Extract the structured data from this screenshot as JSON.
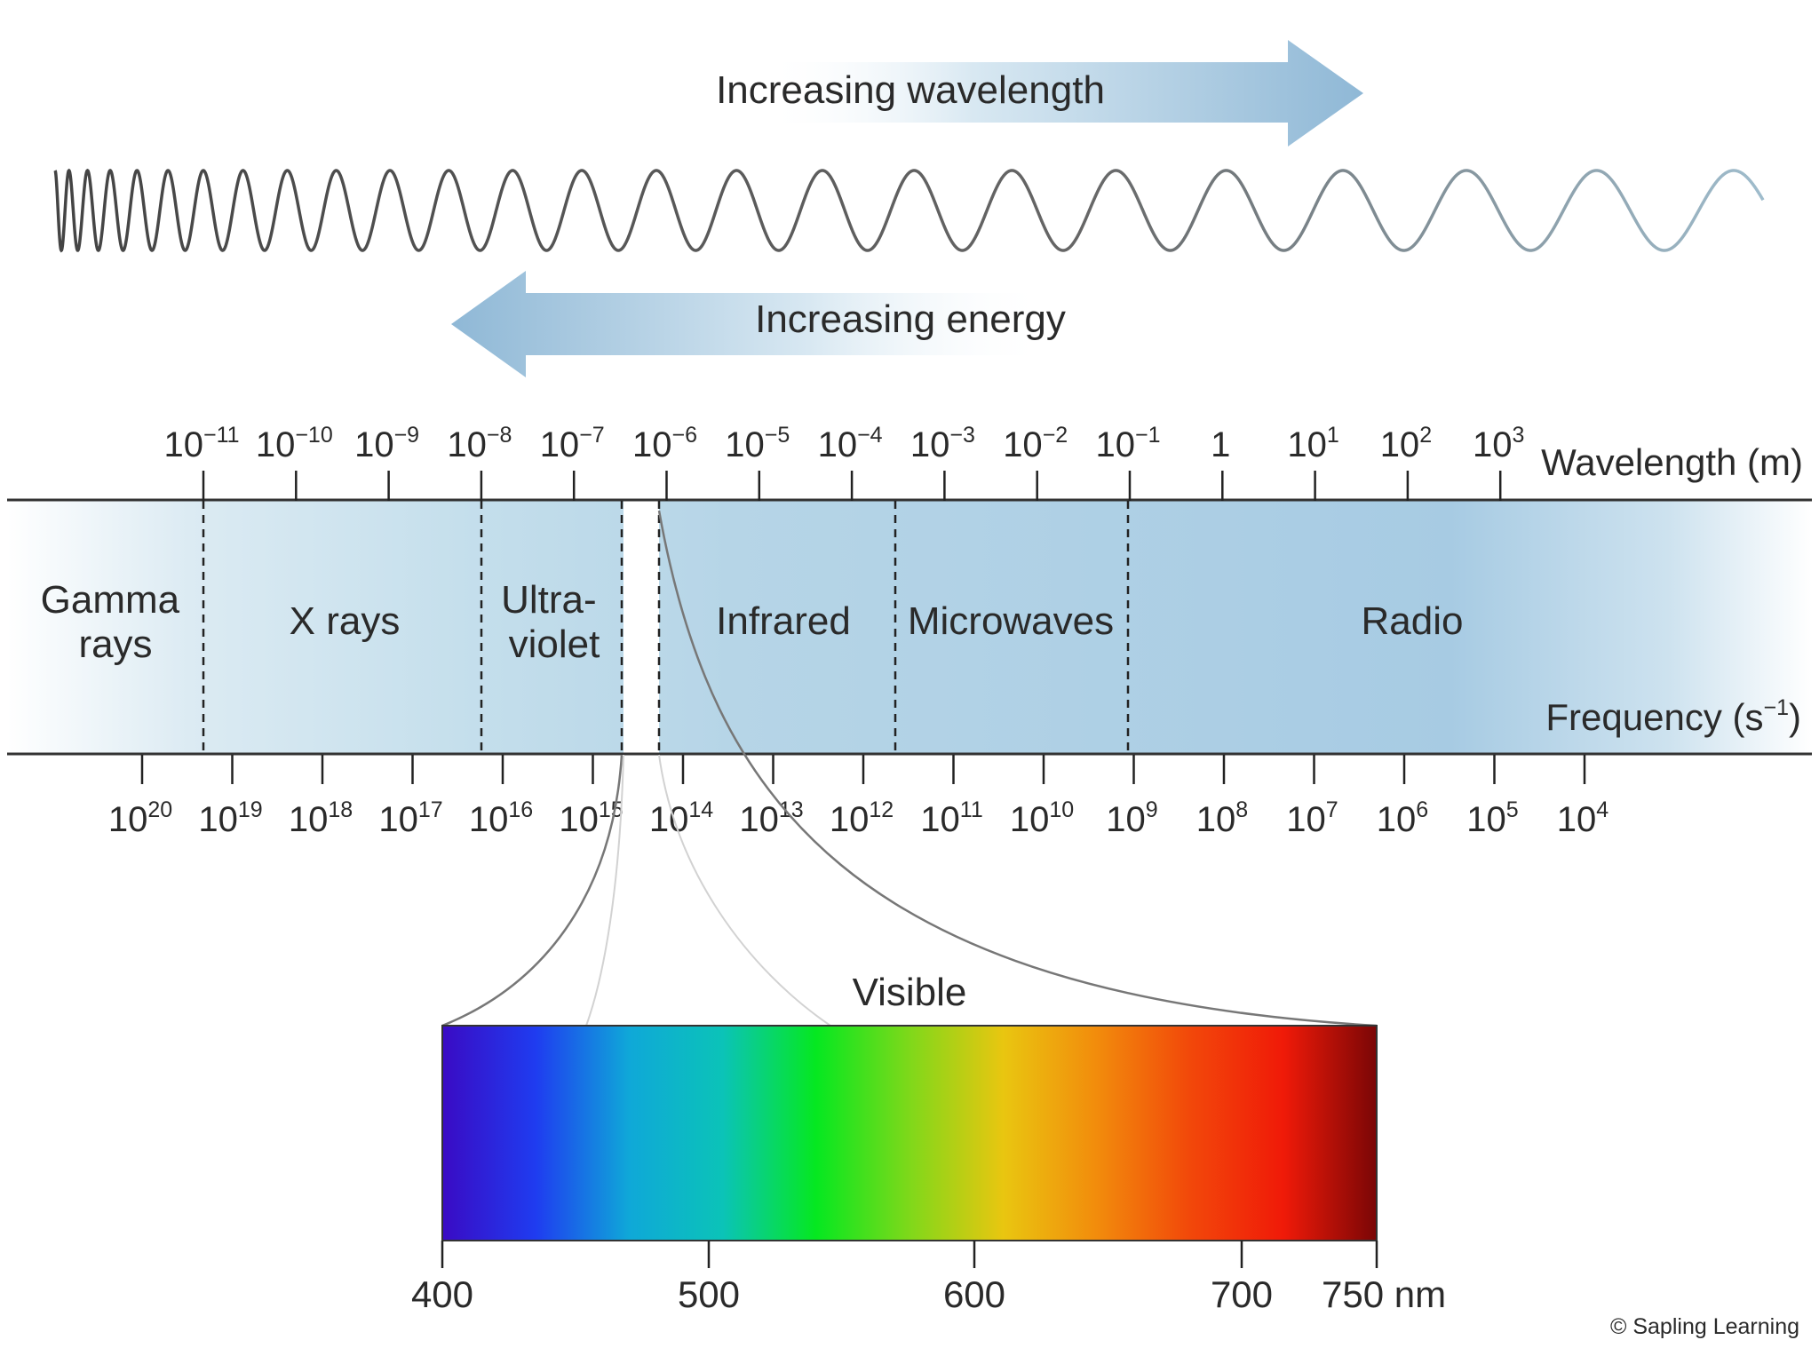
{
  "arrows": {
    "wavelength_label": "Increasing wavelength",
    "energy_label": "Increasing energy"
  },
  "wavelength_axis": {
    "title": "Wavelength (m)",
    "ticks": [
      {
        "base": "10",
        "exp": "−11"
      },
      {
        "base": "10",
        "exp": "−10"
      },
      {
        "base": "10",
        "exp": "−9"
      },
      {
        "base": "10",
        "exp": "−8"
      },
      {
        "base": "10",
        "exp": "−7"
      },
      {
        "base": "10",
        "exp": "−6"
      },
      {
        "base": "10",
        "exp": "−5"
      },
      {
        "base": "10",
        "exp": "−4"
      },
      {
        "base": "10",
        "exp": "−3"
      },
      {
        "base": "10",
        "exp": "−2"
      },
      {
        "base": "10",
        "exp": "−1"
      },
      {
        "base": "1",
        "exp": ""
      },
      {
        "base": "10",
        "exp": "1"
      },
      {
        "base": "10",
        "exp": "2"
      },
      {
        "base": "10",
        "exp": "3"
      }
    ]
  },
  "frequency_axis": {
    "title_base": "Frequency (s",
    "title_exp": "−1",
    "title_end": ")",
    "ticks": [
      {
        "base": "10",
        "exp": "20"
      },
      {
        "base": "10",
        "exp": "19"
      },
      {
        "base": "10",
        "exp": "18"
      },
      {
        "base": "10",
        "exp": "17"
      },
      {
        "base": "10",
        "exp": "16"
      },
      {
        "base": "10",
        "exp": "15"
      },
      {
        "base": "10",
        "exp": "14"
      },
      {
        "base": "10",
        "exp": "13"
      },
      {
        "base": "10",
        "exp": "12"
      },
      {
        "base": "10",
        "exp": "11"
      },
      {
        "base": "10",
        "exp": "10"
      },
      {
        "base": "10",
        "exp": "9"
      },
      {
        "base": "10",
        "exp": "8"
      },
      {
        "base": "10",
        "exp": "7"
      },
      {
        "base": "10",
        "exp": "6"
      },
      {
        "base": "10",
        "exp": "5"
      },
      {
        "base": "10",
        "exp": "4"
      }
    ]
  },
  "regions": {
    "gamma": [
      "Gamma",
      "rays"
    ],
    "xray": [
      "X rays"
    ],
    "uv": [
      "Ultra-",
      "violet"
    ],
    "infrared": [
      "Infrared"
    ],
    "microwaves": [
      "Microwaves"
    ],
    "radio": [
      "Radio"
    ]
  },
  "visible": {
    "title": "Visible",
    "ticks": [
      "400",
      "500",
      "600",
      "700",
      "750 nm"
    ],
    "colors": [
      "#3a0bc4",
      "#1f3cf0",
      "#0fa8d8",
      "#0bc3b8",
      "#05e820",
      "#7fd81a",
      "#e9c610",
      "#f28c0c",
      "#f2480a",
      "#f01a08",
      "#7a0606"
    ]
  },
  "credit": "© Sapling Learning"
}
